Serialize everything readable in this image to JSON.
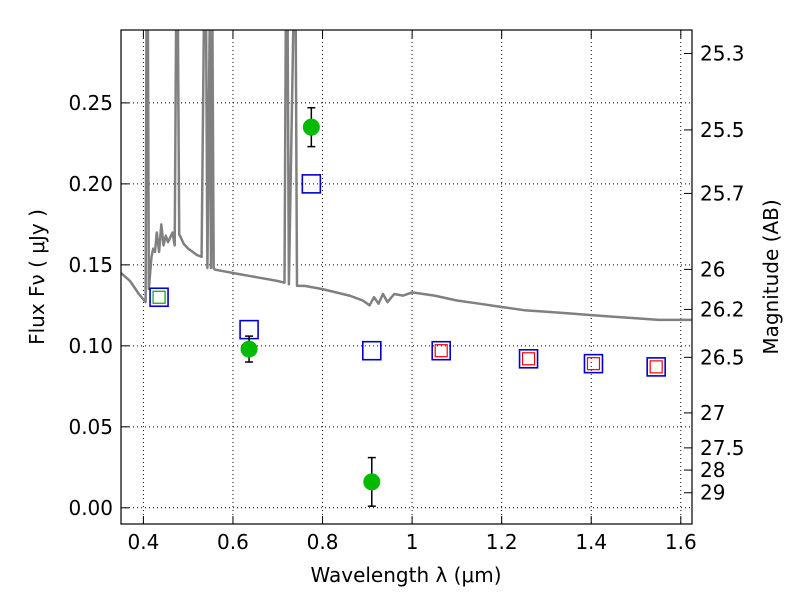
{
  "chart_data": {
    "type": "scatter",
    "xlabel": "Wavelength  λ (μm)",
    "ylabel": "Flux  Fν  ( μJy )",
    "ylabel_right": "Magnitude (AB)",
    "xlim": [
      0.35,
      1.625
    ],
    "ylim": [
      -0.01,
      0.295
    ],
    "grid": true,
    "x_ticks": [
      0.4,
      0.6,
      0.8,
      1.0,
      1.2,
      1.4,
      1.6
    ],
    "x_tick_labels": [
      "0.4",
      "0.6",
      "0.8",
      "1",
      "1.2",
      "1.4",
      "1.6"
    ],
    "y_ticks": [
      0.0,
      0.05,
      0.1,
      0.15,
      0.2,
      0.25
    ],
    "y_tick_labels": [
      "0.00",
      "0.05",
      "0.10",
      "0.15",
      "0.20",
      "0.25"
    ],
    "right_ticks": [
      {
        "label": "25.3",
        "flux": 0.2805
      },
      {
        "label": "25.5",
        "flux": 0.2333
      },
      {
        "label": "25.7",
        "flux": 0.1941
      },
      {
        "label": "26",
        "flux": 0.1472
      },
      {
        "label": "26.2",
        "flux": 0.1225
      },
      {
        "label": "26.5",
        "flux": 0.0929
      },
      {
        "label": "27",
        "flux": 0.0586
      },
      {
        "label": "27.5",
        "flux": 0.037
      },
      {
        "label": "28",
        "flux": 0.0233
      },
      {
        "label": "29",
        "flux": 0.0093
      }
    ],
    "series": [
      {
        "kind": "measured",
        "color": "#00bb00",
        "errcolor": "#000000",
        "points": [
          {
            "x": 0.636,
            "y": 0.098,
            "err": 0.008
          },
          {
            "x": 0.775,
            "y": 0.235,
            "err": 0.012
          },
          {
            "x": 0.91,
            "y": 0.016,
            "err": 0.015
          }
        ]
      },
      {
        "kind": "model",
        "color": "#0000cc",
        "points": [
          {
            "x": 0.435,
            "y": 0.13
          },
          {
            "x": 0.636,
            "y": 0.11
          },
          {
            "x": 0.775,
            "y": 0.2
          },
          {
            "x": 0.91,
            "y": 0.097
          },
          {
            "x": 1.065,
            "y": 0.097
          },
          {
            "x": 1.26,
            "y": 0.092
          },
          {
            "x": 1.405,
            "y": 0.089
          },
          {
            "x": 1.545,
            "y": 0.087
          }
        ]
      },
      {
        "kind": "inner",
        "points": [
          {
            "x": 0.435,
            "y": 0.13,
            "color": "#00aa00"
          },
          {
            "x": 1.065,
            "y": 0.097,
            "color": "#ff0000"
          },
          {
            "x": 1.26,
            "y": 0.092,
            "color": "#ff0000"
          },
          {
            "x": 1.405,
            "y": 0.089,
            "color": "#ff0000"
          },
          {
            "x": 1.545,
            "y": 0.087,
            "color": "#ff0000"
          }
        ]
      },
      {
        "kind": "spectrum",
        "color": "#808080",
        "points": [
          [
            0.35,
            0.145
          ],
          [
            0.37,
            0.14
          ],
          [
            0.39,
            0.132
          ],
          [
            0.405,
            0.127
          ],
          [
            0.407,
            0.3
          ],
          [
            0.41,
            0.3
          ],
          [
            0.412,
            0.135
          ],
          [
            0.418,
            0.155
          ],
          [
            0.422,
            0.16
          ],
          [
            0.426,
            0.158
          ],
          [
            0.43,
            0.17
          ],
          [
            0.435,
            0.158
          ],
          [
            0.44,
            0.175
          ],
          [
            0.445,
            0.162
          ],
          [
            0.45,
            0.168
          ],
          [
            0.455,
            0.164
          ],
          [
            0.46,
            0.167
          ],
          [
            0.465,
            0.17
          ],
          [
            0.47,
            0.162
          ],
          [
            0.473,
            0.3
          ],
          [
            0.477,
            0.3
          ],
          [
            0.48,
            0.169
          ],
          [
            0.49,
            0.163
          ],
          [
            0.5,
            0.16
          ],
          [
            0.51,
            0.158
          ],
          [
            0.52,
            0.156
          ],
          [
            0.53,
            0.155
          ],
          [
            0.535,
            0.3
          ],
          [
            0.54,
            0.3
          ],
          [
            0.543,
            0.148
          ],
          [
            0.548,
            0.3
          ],
          [
            0.551,
            0.148
          ],
          [
            0.554,
            0.3
          ],
          [
            0.557,
            0.148
          ],
          [
            0.56,
            0.147
          ],
          [
            0.58,
            0.146
          ],
          [
            0.6,
            0.145
          ],
          [
            0.62,
            0.144
          ],
          [
            0.64,
            0.143
          ],
          [
            0.66,
            0.142
          ],
          [
            0.68,
            0.141
          ],
          [
            0.7,
            0.14
          ],
          [
            0.715,
            0.139
          ],
          [
            0.718,
            0.3
          ],
          [
            0.722,
            0.3
          ],
          [
            0.725,
            0.138
          ],
          [
            0.735,
            0.3
          ],
          [
            0.74,
            0.3
          ],
          [
            0.743,
            0.137
          ],
          [
            0.76,
            0.137
          ],
          [
            0.78,
            0.136
          ],
          [
            0.8,
            0.135
          ],
          [
            0.83,
            0.133
          ],
          [
            0.86,
            0.131
          ],
          [
            0.89,
            0.128
          ],
          [
            0.905,
            0.125
          ],
          [
            0.915,
            0.13
          ],
          [
            0.925,
            0.126
          ],
          [
            0.935,
            0.132
          ],
          [
            0.945,
            0.127
          ],
          [
            0.96,
            0.132
          ],
          [
            0.98,
            0.131
          ],
          [
            1.0,
            0.133
          ],
          [
            1.05,
            0.131
          ],
          [
            1.1,
            0.128
          ],
          [
            1.15,
            0.126
          ],
          [
            1.2,
            0.124
          ],
          [
            1.25,
            0.122
          ],
          [
            1.3,
            0.121
          ],
          [
            1.35,
            0.12
          ],
          [
            1.4,
            0.119
          ],
          [
            1.45,
            0.118
          ],
          [
            1.5,
            0.117
          ],
          [
            1.55,
            0.116
          ],
          [
            1.6,
            0.116
          ],
          [
            1.625,
            0.116
          ]
        ]
      }
    ]
  }
}
